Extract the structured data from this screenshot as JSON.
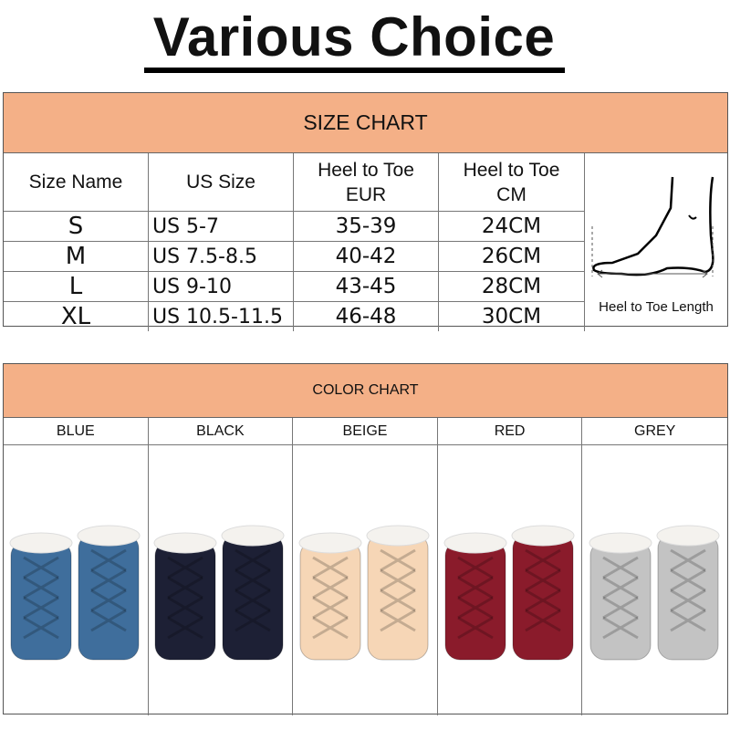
{
  "title": "Various Choice",
  "size_chart": {
    "heading": "SIZE CHART",
    "headers": [
      "Size Name",
      "US Size",
      "Heel to Toe\nEUR",
      "Heel to Toe\nCM"
    ],
    "rows": [
      [
        "S",
        "US 5-7",
        "35-39",
        "24CM"
      ],
      [
        "M",
        "US 7.5-8.5",
        "40-42",
        "26CM"
      ],
      [
        "L",
        "US 9-10",
        "43-45",
        "28CM"
      ],
      [
        "XL",
        "US 10.5-11.5",
        "46-48",
        "30CM"
      ]
    ],
    "foot_label": "Heel to Toe Length",
    "foot_icon": "foot-measurement-icon"
  },
  "color_chart": {
    "heading": "COLOR CHART",
    "colors": [
      {
        "name": "BLUE",
        "hex": "#3f6e9c"
      },
      {
        "name": "BLACK",
        "hex": "#1d2035"
      },
      {
        "name": "BEIGE",
        "hex": "#f6d6b6"
      },
      {
        "name": "RED",
        "hex": "#8a1b2b"
      },
      {
        "name": "GREY",
        "hex": "#c3c3c3"
      }
    ]
  },
  "accent": "#f4b087"
}
